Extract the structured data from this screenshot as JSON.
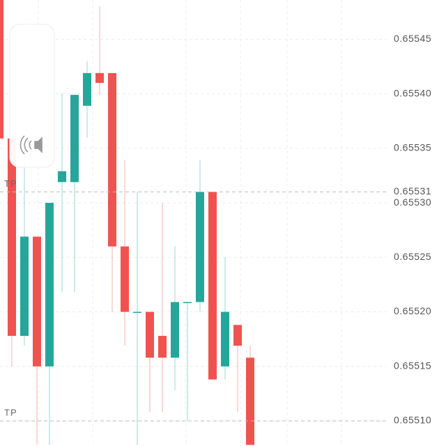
{
  "chart_data": {
    "type": "candlestick",
    "up_color": "#26a69a",
    "down_color": "#ef5350",
    "grid": true,
    "ylim": [
      0.655077,
      0.655486
    ],
    "yticks": [
      {
        "value": 0.6551,
        "label": "0.65510"
      },
      0.65515,
      {
        "value": 0.6552,
        "label": "0.65520"
      },
      0.65525,
      {
        "value": 0.6553,
        "label": "0.65530"
      },
      0.65535,
      {
        "value": 0.6554,
        "label": "0.65540"
      },
      0.65545
    ],
    "price_lines": [
      {
        "label": "TP",
        "value": 0.65531,
        "value_label": "0.65531"
      },
      {
        "label": "TP",
        "value": 0.6551
      }
    ],
    "open": [
      0.655486,
      0.655359,
      0.655178,
      0.655269,
      0.65515,
      0.655319,
      0.655319,
      0.655389,
      0.655419,
      0.655419,
      0.65526,
      0.6552,
      0.6552,
      0.655178,
      0.655158,
      0.655209,
      0.655209,
      0.65531,
      0.65515,
      0.655188,
      0.655158
    ],
    "high": [
      0.655486,
      0.655359,
      0.655339,
      0.655269,
      0.6553,
      0.6554,
      0.655399,
      0.65543,
      0.65548,
      0.655419,
      0.655339,
      0.65531,
      0.6552,
      0.6553,
      0.65526,
      0.655209,
      0.655339,
      0.65531,
      0.65525,
      0.655188,
      0.655169
    ],
    "low": [
      0.655359,
      0.65515,
      0.655169,
      0.655078,
      0.655078,
      0.655218,
      0.655218,
      0.65536,
      0.655399,
      0.6552,
      0.655169,
      0.655078,
      0.655108,
      0.655108,
      0.655128,
      0.6551,
      0.6552,
      0.655138,
      0.655138,
      0.655108,
      0.655078
    ],
    "close": [
      0.655359,
      0.655178,
      0.655269,
      0.65515,
      0.6553,
      0.655329,
      0.655399,
      0.655419,
      0.65541,
      0.65526,
      0.6552,
      0.6552,
      0.655158,
      0.655158,
      0.655209,
      0.655209,
      0.65531,
      0.655138,
      0.6552,
      0.655169,
      0.655078
    ]
  }
}
